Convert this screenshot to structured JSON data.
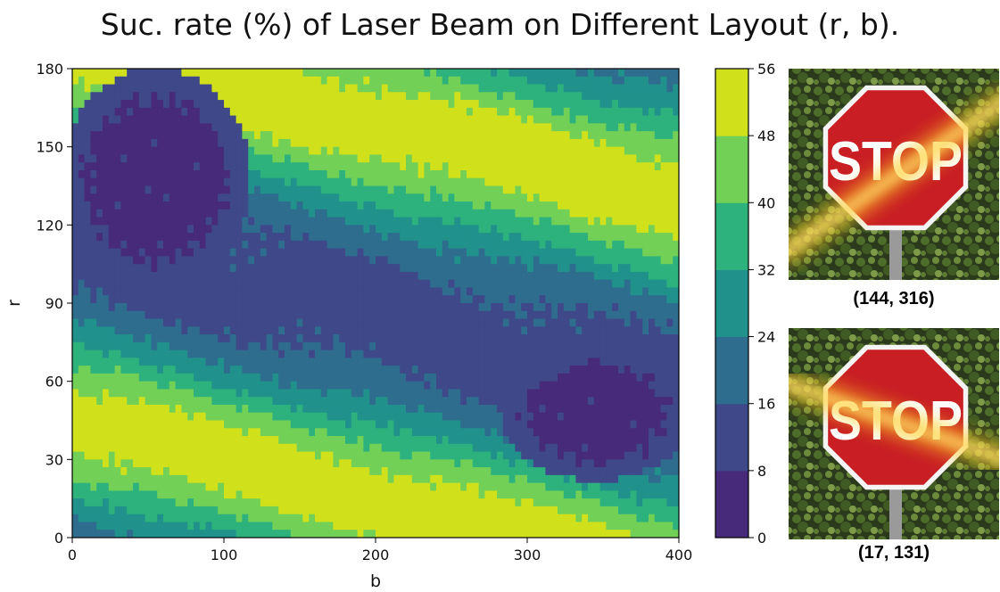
{
  "chart_data": {
    "type": "heatmap",
    "title": "Suc. rate (%) of Laser Beam on Different Layout (r, b).",
    "xlabel": "b",
    "ylabel": "r",
    "xlim": [
      0,
      400
    ],
    "ylim": [
      0,
      180
    ],
    "x_ticks": [
      "0",
      "100",
      "200",
      "300",
      "400"
    ],
    "y_ticks": [
      "0",
      "30",
      "60",
      "90",
      "120",
      "150",
      "180"
    ],
    "colorbar": {
      "levels": [
        0,
        8,
        16,
        24,
        32,
        40,
        48,
        56
      ],
      "tick_labels": [
        "0",
        "8",
        "16",
        "24",
        "32",
        "40",
        "48",
        "56"
      ],
      "colors": [
        "#472a7a",
        "#3f4889",
        "#2e6d8e",
        "#21918c",
        "#2db27d",
        "#73d056",
        "#d0e11c"
      ]
    },
    "bands": [
      {
        "name": "upper",
        "ridge_start": [
          60,
          180
        ],
        "ridge_end": [
          400,
          130
        ],
        "peak": 54
      },
      {
        "name": "lower",
        "ridge_start": [
          0,
          45
        ],
        "ridge_end": [
          230,
          10
        ],
        "peak": 54
      }
    ],
    "low_regions": [
      {
        "name": "upper-left",
        "b_range": [
          0,
          110
        ],
        "r_range": [
          100,
          175
        ],
        "value": 6
      },
      {
        "name": "lower-right",
        "b_range": [
          290,
          400
        ],
        "r_range": [
          25,
          70
        ],
        "value": 6
      }
    ]
  },
  "examples": [
    {
      "caption": "(144, 316)",
      "sign_text": "STOP",
      "position": "top"
    },
    {
      "caption": "(17, 131)",
      "sign_text": "STOP",
      "position": "bottom"
    }
  ]
}
